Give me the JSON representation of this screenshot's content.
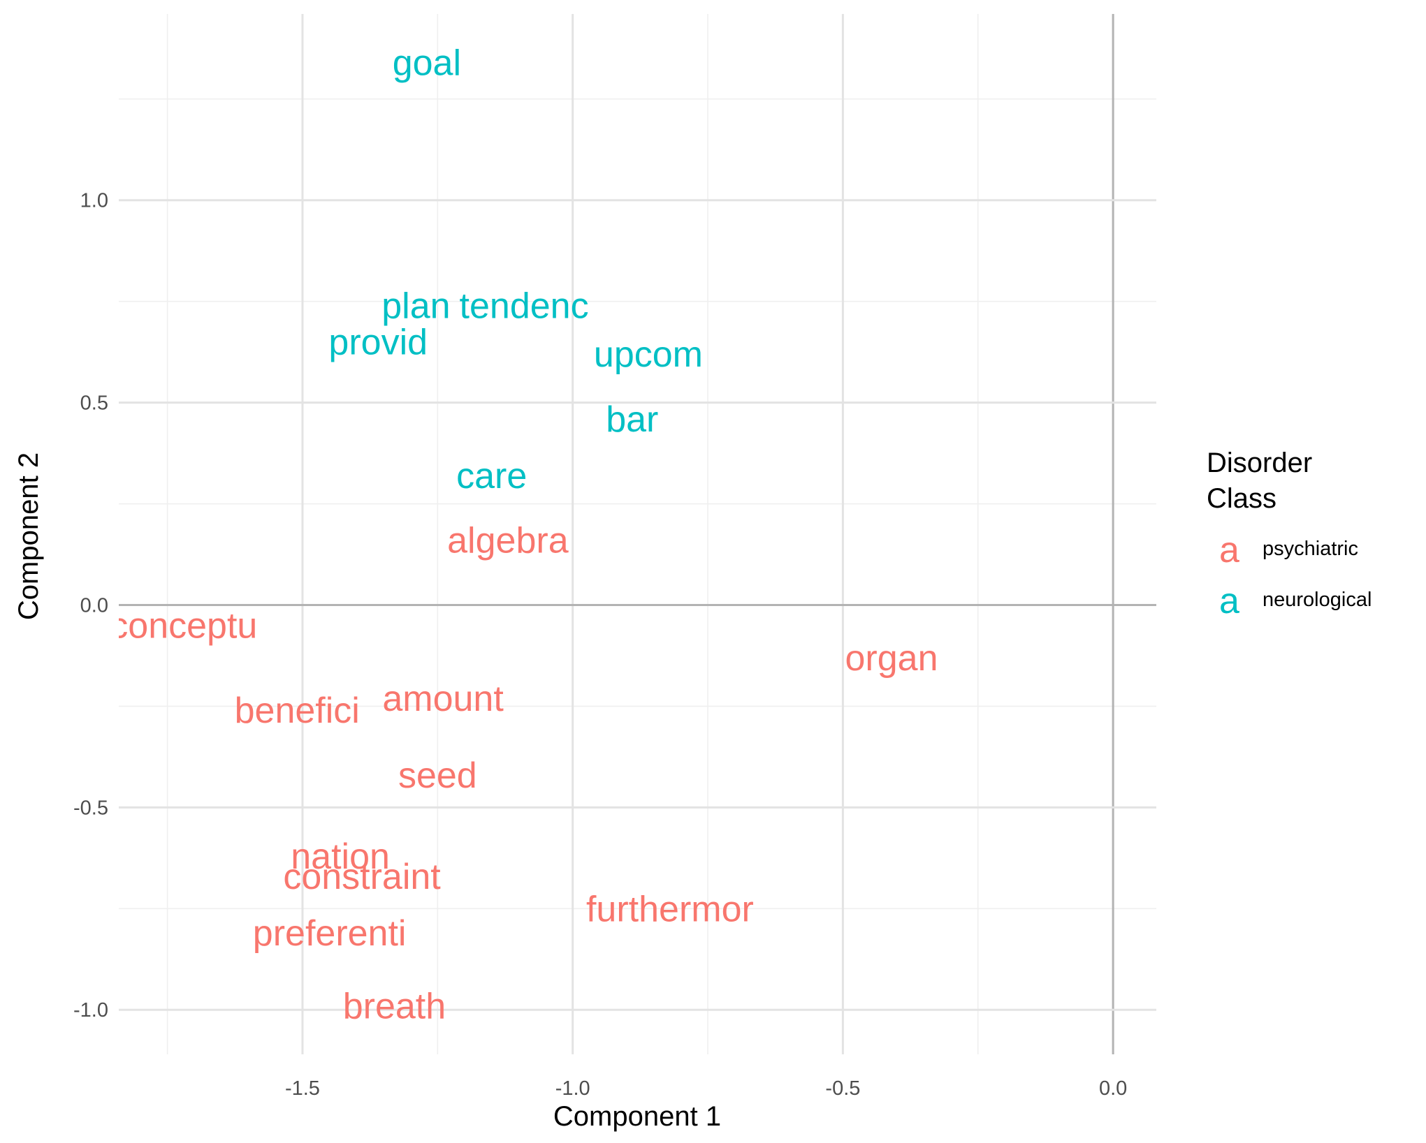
{
  "chart_data": {
    "type": "scatter",
    "mark": "text-label",
    "xlabel": "Component 1",
    "ylabel": "Component 2",
    "xlim": [
      -1.84,
      0.08
    ],
    "ylim": [
      -1.11,
      1.46
    ],
    "xticks": [
      -1.5,
      -1.0,
      -0.5,
      0.0
    ],
    "xtick_labels": [
      "-1.5",
      "-1.0",
      "-0.5",
      "0.0"
    ],
    "yticks": [
      -1.0,
      -0.5,
      0.0,
      0.5,
      1.0
    ],
    "ytick_labels": [
      "-1.0",
      "-0.5",
      "0.0",
      "0.5",
      "1.0"
    ],
    "grid": true,
    "reference_lines": {
      "x": 0,
      "y": 0
    },
    "legend": {
      "title_lines": [
        "Disorder",
        "Class"
      ],
      "placement": "right",
      "key_glyph": "a",
      "entries": [
        {
          "label": "psychiatric",
          "color": "#F8766D"
        },
        {
          "label": "neurological",
          "color": "#00BFC4"
        }
      ]
    },
    "series": [
      {
        "name": "psychiatric",
        "color": "#F8766D",
        "points": [
          {
            "label": "algebra",
            "x": -1.12,
            "y": 0.16
          },
          {
            "label": "conceptu",
            "x": -1.72,
            "y": -0.05
          },
          {
            "label": "organ",
            "x": -0.41,
            "y": -0.13
          },
          {
            "label": "amount",
            "x": -1.24,
            "y": -0.23
          },
          {
            "label": "benefici",
            "x": -1.51,
            "y": -0.26
          },
          {
            "label": "seed",
            "x": -1.25,
            "y": -0.42
          },
          {
            "label": "nation",
            "x": -1.43,
            "y": -0.62
          },
          {
            "label": "constraint",
            "x": -1.39,
            "y": -0.67
          },
          {
            "label": "furthermor",
            "x": -0.82,
            "y": -0.75
          },
          {
            "label": "preferenti",
            "x": -1.45,
            "y": -0.81
          },
          {
            "label": "breath",
            "x": -1.33,
            "y": -0.99
          }
        ]
      },
      {
        "name": "neurological",
        "color": "#00BFC4",
        "points": [
          {
            "label": "goal",
            "x": -1.27,
            "y": 1.34
          },
          {
            "label": "plan",
            "x": -1.29,
            "y": 0.74
          },
          {
            "label": "tendenc",
            "x": -1.09,
            "y": 0.74
          },
          {
            "label": "provid",
            "x": -1.36,
            "y": 0.65
          },
          {
            "label": "upcom",
            "x": -0.86,
            "y": 0.62
          },
          {
            "label": "bar",
            "x": -0.89,
            "y": 0.46
          },
          {
            "label": "care",
            "x": -1.15,
            "y": 0.32
          }
        ]
      }
    ]
  }
}
